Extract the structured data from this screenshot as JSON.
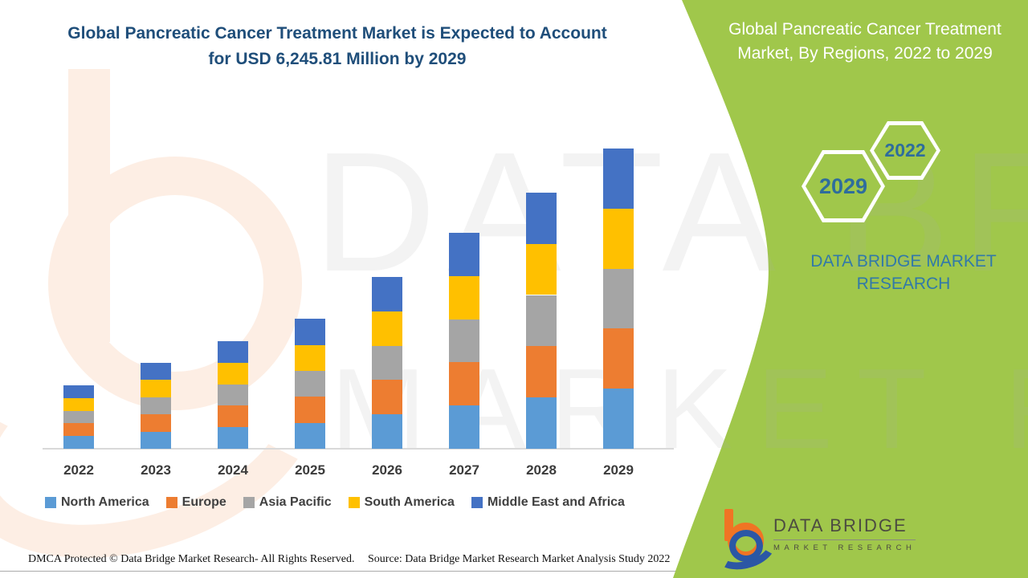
{
  "page_title": "Global Pancreatic Cancer Treatment Market is Expected to Account for USD 6,245.81 Million by 2029",
  "banner": {
    "title": "Global Pancreatic Cancer Treatment Market, By Regions, 2022 to 2029",
    "hexagon_years": {
      "front": "2022",
      "back": "2029"
    },
    "brand_text": "DATA BRIDGE MARKET RESEARCH",
    "green_color": "#a0c74b"
  },
  "watermark": {
    "line1": "DATA BRIDGE",
    "line2": "MARKET RESEARCH"
  },
  "chart_data": {
    "type": "bar",
    "stacked": true,
    "title": "Global Pancreatic Cancer Treatment Market, By Regions, 2022 to 2029",
    "unit": "USD Million",
    "categories": [
      "2022",
      "2023",
      "2024",
      "2025",
      "2026",
      "2027",
      "2028",
      "2029"
    ],
    "series": [
      {
        "name": "North America",
        "color": "#5B9BD5",
        "values": [
          264,
          358,
          448,
          540,
          715,
          898,
          1066,
          1249.16
        ]
      },
      {
        "name": "Europe",
        "color": "#ED7D31",
        "values": [
          264,
          358,
          448,
          540,
          715,
          898,
          1066,
          1249.16
        ]
      },
      {
        "name": "Asia Pacific",
        "color": "#A5A5A5",
        "values": [
          264,
          358,
          448,
          540,
          715,
          898,
          1066,
          1249.16
        ]
      },
      {
        "name": "South America",
        "color": "#FFC000",
        "values": [
          264,
          358,
          448,
          540,
          715,
          898,
          1066,
          1249.16
        ]
      },
      {
        "name": "Middle East and Africa",
        "color": "#4472C4",
        "values": [
          264,
          358,
          448,
          540,
          715,
          898,
          1066,
          1249.17
        ]
      }
    ],
    "totals": [
      1320,
      1790,
      2240,
      2700,
      3575,
      4490,
      5330,
      6245.81
    ],
    "highlight_total": "USD 6,245.81 Million by 2029",
    "values_estimated_from_bar_heights": true,
    "axes_visible": false,
    "gridlines": false,
    "legend_position": "bottom"
  },
  "footer": {
    "dmca": "DMCA Protected © Data Bridge Market Research- All Rights Reserved.",
    "source": "Source: Data Bridge Market Research Market Analysis Study 2022"
  },
  "logo": {
    "title": "DATA BRIDGE",
    "subtitle": "MARKET RESEARCH"
  }
}
